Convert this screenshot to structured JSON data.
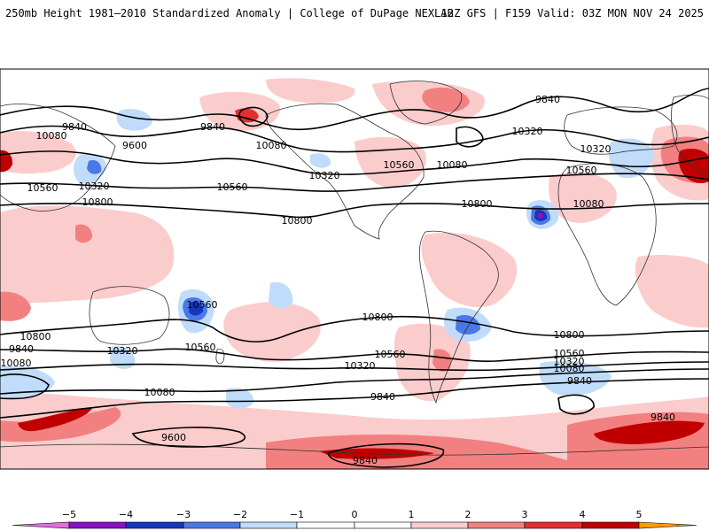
{
  "header": {
    "left": "250mb Height 1981–2010 Standardized Anomaly | College of DuPage NEXLAB",
    "right": "12Z GFS | F159 Valid: 03Z MON NOV 24 2025"
  },
  "colors": {
    "neg5": "#e070e0",
    "neg4": "#8a10c8",
    "neg3": "#1636b8",
    "neg2": "#4a78e8",
    "neg1": "#c0dcfa",
    "zero": "#ffffff",
    "pos1": "#fbcccc",
    "pos2": "#f28080",
    "pos3": "#e23030",
    "pos4": "#c00000",
    "pos5": "#ff9c00"
  },
  "contour_labels": [
    "9840",
    "10080",
    "9600",
    "10560",
    "10320",
    "10800",
    "9840",
    "10080",
    "10320",
    "10560",
    "10800",
    "10560",
    "10080",
    "10320",
    "9840",
    "9600",
    "9840",
    "10800",
    "10560",
    "10320",
    "10080",
    "10560",
    "10800",
    "10080",
    "9840",
    "10320",
    "10560",
    "10800",
    "10320",
    "10560",
    "10080",
    "9840",
    "9840",
    "10800",
    "10560",
    "10320",
    "10080",
    "9840"
  ],
  "colorbar": {
    "ticks": [
      "−5",
      "−4",
      "−3",
      "−2",
      "−1",
      "0",
      "1",
      "2",
      "3",
      "4",
      "5"
    ]
  }
}
